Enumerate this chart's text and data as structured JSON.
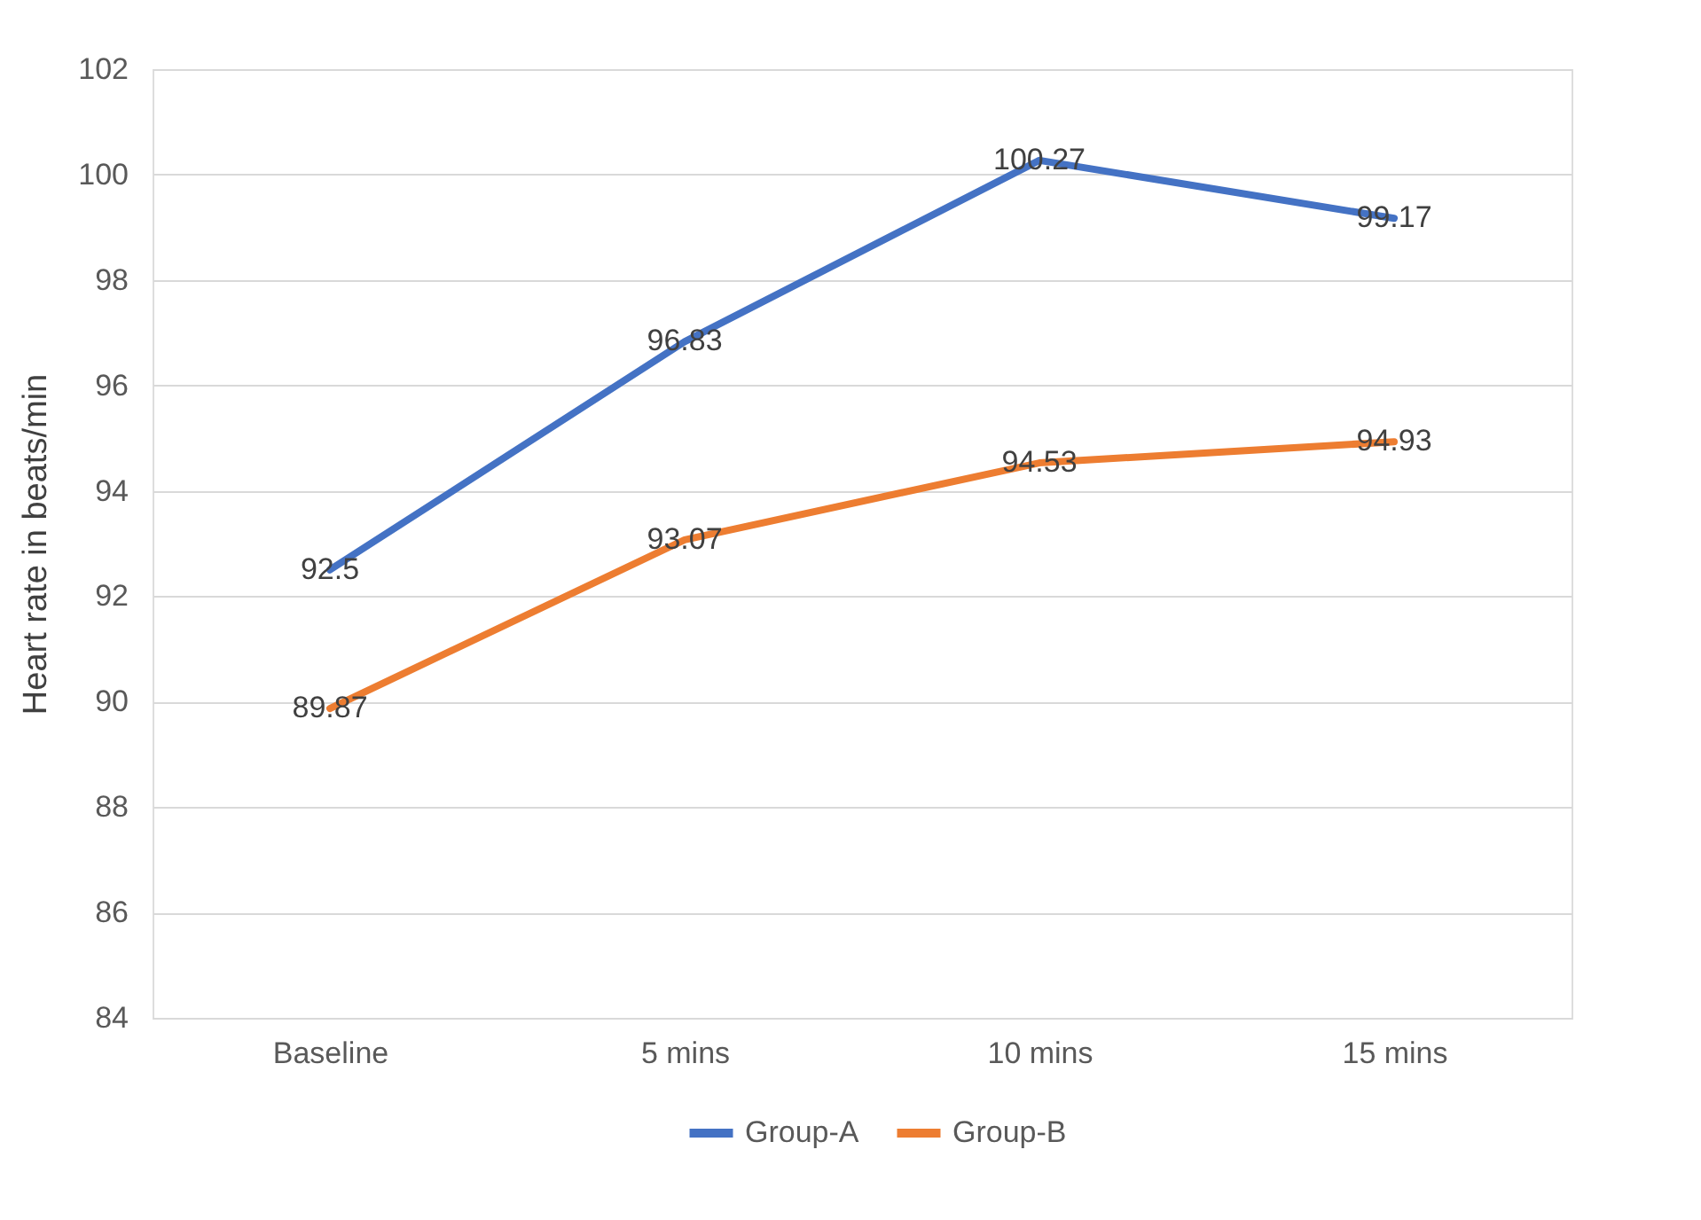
{
  "chart_data": {
    "type": "line",
    "ylabel": "Heart rate in beats/min",
    "categories": [
      "Baseline",
      "5 mins",
      "10 mins",
      "15 mins"
    ],
    "series": [
      {
        "name": "Group-A",
        "color": "#4472c4",
        "values": [
          92.5,
          96.83,
          100.27,
          99.17
        ]
      },
      {
        "name": "Group-B",
        "color": "#ed7d31",
        "values": [
          89.87,
          93.07,
          94.53,
          94.93
        ]
      }
    ],
    "ylim": [
      84,
      102
    ],
    "yticks": [
      84,
      86,
      88,
      90,
      92,
      94,
      96,
      98,
      100,
      102
    ],
    "grid": "y",
    "legend": "bottom",
    "data_labels": true,
    "marker": "none",
    "line_style": "solid"
  }
}
